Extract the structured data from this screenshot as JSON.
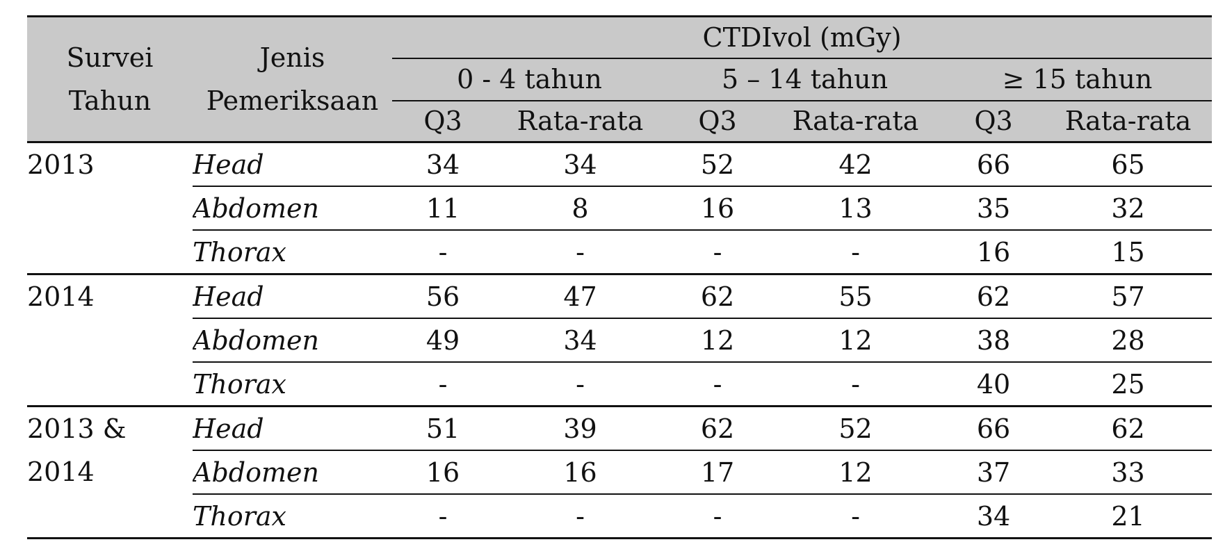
{
  "table": {
    "header": {
      "col_survey_line1": "Survei",
      "col_survey_line2": "Tahun",
      "col_exam_line1": "Jenis",
      "col_exam_line2": "Pemeriksaan",
      "group_title": "CTDIvol (mGy)",
      "age_groups": [
        "0 -  4 tahun",
        "5 – 14 tahun",
        "≥ 15 tahun"
      ],
      "subcols": [
        "Q3",
        "Rata-rata",
        "Q3",
        "Rata-rata",
        "Q3",
        "Rata-rata"
      ]
    },
    "groups": [
      {
        "year_line1": "2013",
        "year_line2": "",
        "rows": [
          {
            "exam": "Head",
            "values": [
              "34",
              "34",
              "52",
              "42",
              "66",
              "65"
            ]
          },
          {
            "exam": "Abdomen",
            "values": [
              "11",
              "8",
              "16",
              "13",
              "35",
              "32"
            ]
          },
          {
            "exam": "Thorax",
            "values": [
              "-",
              "-",
              "-",
              "-",
              "16",
              "15"
            ]
          }
        ]
      },
      {
        "year_line1": "2014",
        "year_line2": "",
        "rows": [
          {
            "exam": "Head",
            "values": [
              "56",
              "47",
              "62",
              "55",
              "62",
              "57"
            ]
          },
          {
            "exam": "Abdomen",
            "values": [
              "49",
              "34",
              "12",
              "12",
              "38",
              "28"
            ]
          },
          {
            "exam": "Thorax",
            "values": [
              "-",
              "-",
              "-",
              "-",
              "40",
              "25"
            ]
          }
        ]
      },
      {
        "year_line1": "2013 &",
        "year_line2": "2014",
        "rows": [
          {
            "exam": "Head",
            "values": [
              "51",
              "39",
              "62",
              "52",
              "66",
              "62"
            ]
          },
          {
            "exam": "Abdomen",
            "values": [
              "16",
              "16",
              "17",
              "12",
              "37",
              "33"
            ]
          },
          {
            "exam": "Thorax",
            "values": [
              "-",
              "-",
              "-",
              "-",
              "34",
              "21"
            ]
          }
        ]
      }
    ]
  }
}
